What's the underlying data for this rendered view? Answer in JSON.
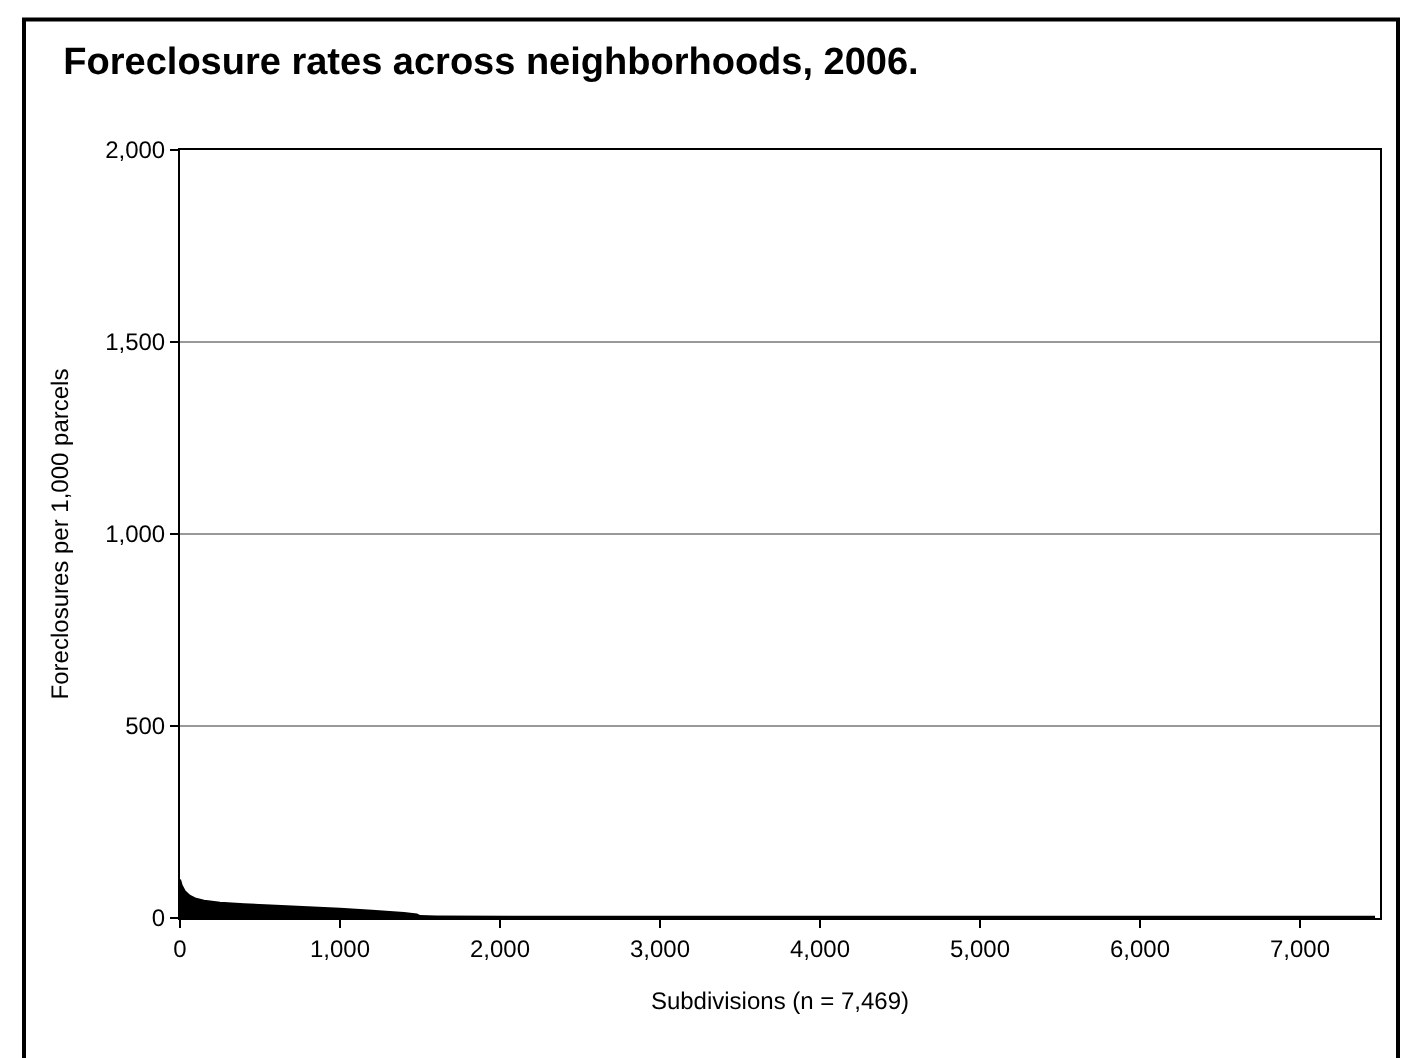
{
  "chart_data": {
    "type": "area",
    "title": "Foreclosure rates across neighborhoods, 2006.",
    "xlabel": "Subdivisions (n = 7,469)",
    "ylabel": "Foreclosures per 1,000 parcels",
    "x": [
      0,
      10,
      30,
      60,
      100,
      150,
      250,
      400,
      600,
      800,
      1000,
      1200,
      1400,
      1480,
      1500,
      1600,
      2500,
      4000,
      5500,
      7000,
      7469
    ],
    "values": [
      100,
      85,
      70,
      58,
      50,
      45,
      40,
      36,
      32,
      28,
      24,
      19,
      13,
      9,
      5,
      4,
      3,
      3,
      3,
      3,
      3
    ],
    "color": "#000000",
    "xlim": [
      0,
      7500
    ],
    "xticks": [
      {
        "value": 0,
        "label": "0"
      },
      {
        "value": 1000,
        "label": "1,000"
      },
      {
        "value": 2000,
        "label": "2,000"
      },
      {
        "value": 3000,
        "label": "3,000"
      },
      {
        "value": 4000,
        "label": "4,000"
      },
      {
        "value": 5000,
        "label": "5,000"
      },
      {
        "value": 6000,
        "label": "6,000"
      },
      {
        "value": 7000,
        "label": "7,000"
      }
    ],
    "ylim": [
      0,
      2000
    ],
    "yticks": [
      {
        "value": 0,
        "label": "0"
      },
      {
        "value": 500,
        "label": "500"
      },
      {
        "value": 1000,
        "label": "1,000"
      },
      {
        "value": 1500,
        "label": "1,500"
      },
      {
        "value": 2000,
        "label": "2,000"
      }
    ],
    "grid": "y",
    "legend": false
  }
}
